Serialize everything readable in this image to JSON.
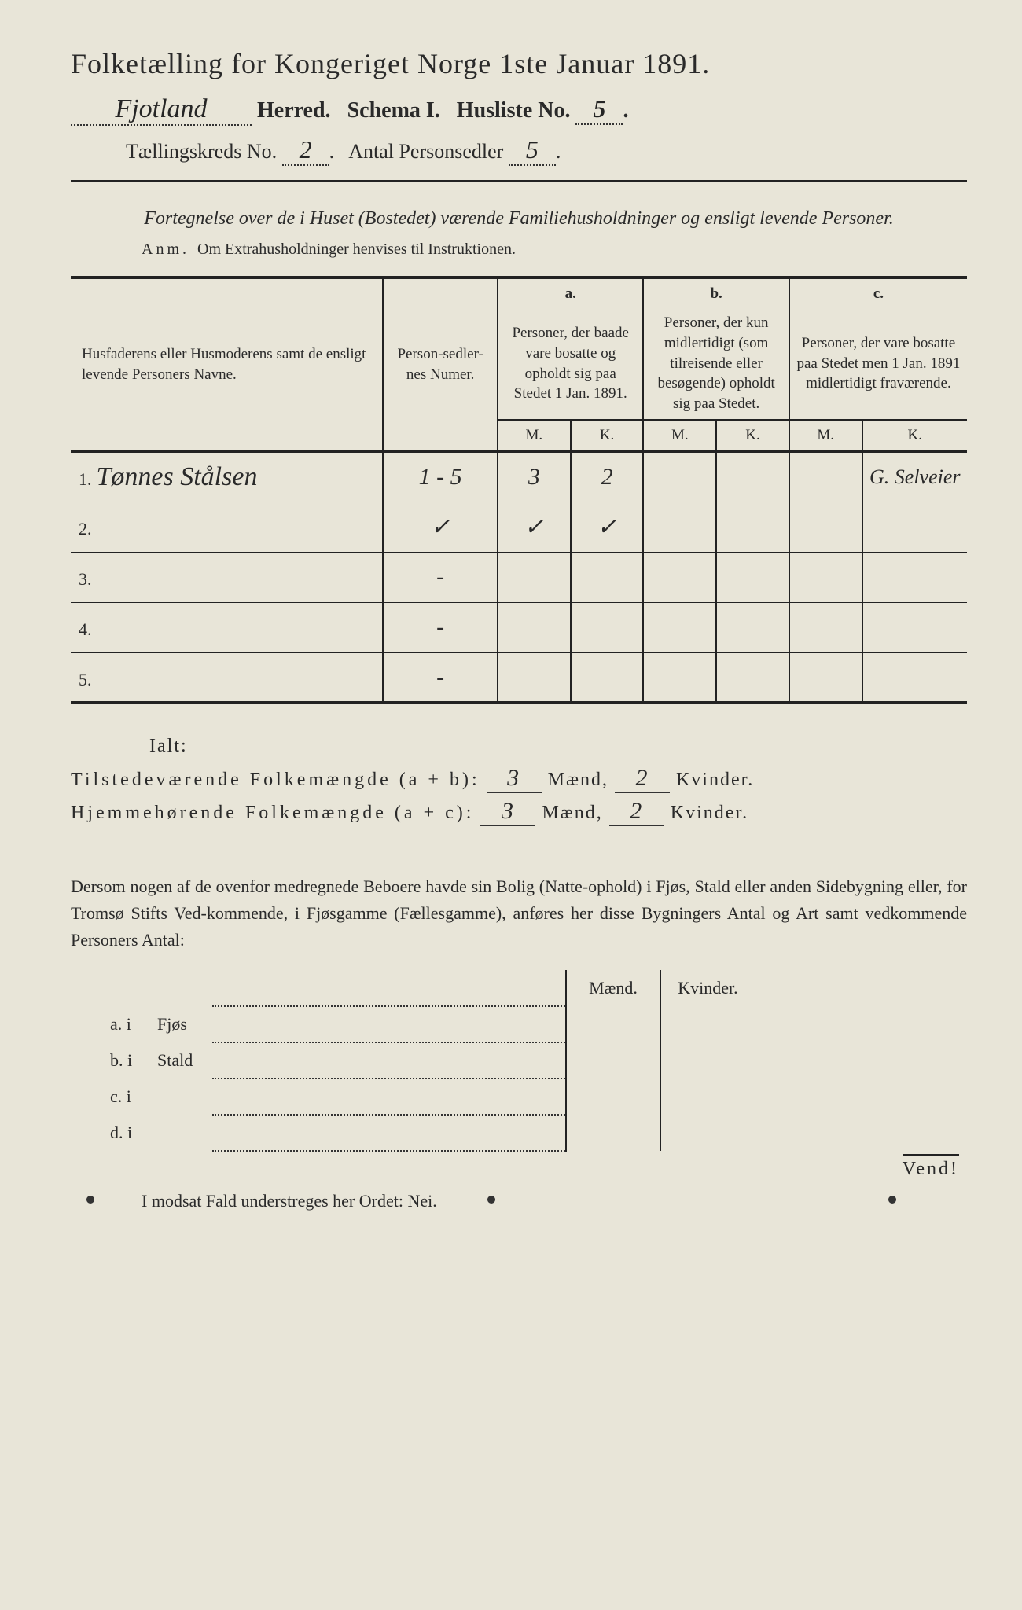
{
  "colors": {
    "paper": "#e8e5d8",
    "ink": "#2a2a2a",
    "rule": "#222222"
  },
  "title": "Folketælling for Kongeriget Norge 1ste Januar 1891.",
  "header": {
    "herred_value": "Fjotland",
    "herred_label": "Herred.",
    "schema_label": "Schema I.",
    "husliste_label": "Husliste No.",
    "husliste_no": "5",
    "kreds_label": "Tællingskreds No.",
    "kreds_no": "2",
    "antal_label": "Antal Personsedler",
    "antal_val": "5"
  },
  "subtitle": "Fortegnelse over de i Huset (Bostedet) værende Familiehusholdninger og ensligt levende Personer.",
  "anm_label": "Anm.",
  "anm_text": "Om Extrahusholdninger henvises til Instruktionen.",
  "table": {
    "col_name": "Husfaderens eller Husmoderens samt de ensligt levende Personers Navne.",
    "col_num": "Person-sedler-nes Numer.",
    "a_label": "a.",
    "a_text": "Personer, der baade vare bosatte og opholdt sig paa Stedet 1 Jan. 1891.",
    "b_label": "b.",
    "b_text": "Personer, der kun midlertidigt (som tilreisende eller besøgende) opholdt sig paa Stedet.",
    "c_label": "c.",
    "c_text": "Personer, der vare bosatte paa Stedet men 1 Jan. 1891 midlertidigt fraværende.",
    "M": "M.",
    "K": "K.",
    "rows": [
      {
        "n": "1.",
        "name": "Tønnes Stålsen",
        "num": "1 - 5",
        "aM": "3",
        "aK": "2",
        "bM": "",
        "bK": "",
        "cM": "",
        "cK": "G. Selveier"
      },
      {
        "n": "2.",
        "name": "",
        "num": "✓",
        "aM": "✓",
        "aK": "✓",
        "bM": "",
        "bK": "",
        "cM": "",
        "cK": ""
      },
      {
        "n": "3.",
        "name": "",
        "num": "-",
        "aM": "",
        "aK": "",
        "bM": "",
        "bK": "",
        "cM": "",
        "cK": ""
      },
      {
        "n": "4.",
        "name": "",
        "num": "-",
        "aM": "",
        "aK": "",
        "bM": "",
        "bK": "",
        "cM": "",
        "cK": ""
      },
      {
        "n": "5.",
        "name": "",
        "num": "-",
        "aM": "",
        "aK": "",
        "bM": "",
        "bK": "",
        "cM": "",
        "cK": ""
      }
    ]
  },
  "ialt": {
    "label": "Ialt:",
    "line1_a": "Tilstedeværende Folkemængde (a + b):",
    "line2_a": "Hjemmehørende Folkemængde (a + c):",
    "maend": "Mænd,",
    "kvinder": "Kvinder.",
    "v1m": "3",
    "v1k": "2",
    "v2m": "3",
    "v2k": "2"
  },
  "para": "Dersom nogen af de ovenfor medregnede Beboere havde sin Bolig (Natte-ophold) i Fjøs, Stald eller anden Sidebygning eller, for Tromsø Stifts Ved-kommende, i Fjøsgamme (Fællesgamme), anføres her disse Bygningers Antal og Art samt vedkommende Personers Antal:",
  "bottom": {
    "maend": "Mænd.",
    "kvinder": "Kvinder.",
    "rows": [
      {
        "k": "a.  i",
        "t": "Fjøs"
      },
      {
        "k": "b.  i",
        "t": "Stald"
      },
      {
        "k": "c.  i",
        "t": ""
      },
      {
        "k": "d.  i",
        "t": ""
      }
    ]
  },
  "nei": "I modsat Fald understreges her Ordet: Nei.",
  "vend": "Vend!"
}
